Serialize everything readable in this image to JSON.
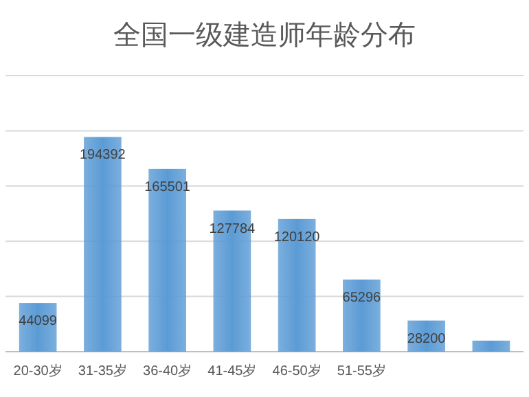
{
  "chart_data": {
    "type": "bar",
    "title": "全国一级建造师年龄分布",
    "categories": [
      "20-30岁",
      "31-35岁",
      "36-40岁",
      "41-45岁",
      "46-50岁",
      "51-55岁",
      null,
      null
    ],
    "values": [
      44099,
      194392,
      165501,
      127784,
      120120,
      65296,
      28200,
      10000
    ],
    "value_labels": [
      "44099",
      "194392",
      "165501",
      "127784",
      "120120",
      "65296",
      "28200",
      null
    ],
    "color": "#5b9bd5",
    "ylim": [
      0,
      250000
    ],
    "yticks": [
      {
        "value": 0,
        "label": null
      },
      {
        "value": 50000,
        "label": null
      },
      {
        "value": 100000,
        "label": null
      },
      {
        "value": 150000,
        "label": null
      },
      {
        "value": 200000,
        "label": null
      },
      {
        "value": 250000,
        "label": null
      }
    ],
    "tick_labels": "x",
    "grid": "y"
  }
}
